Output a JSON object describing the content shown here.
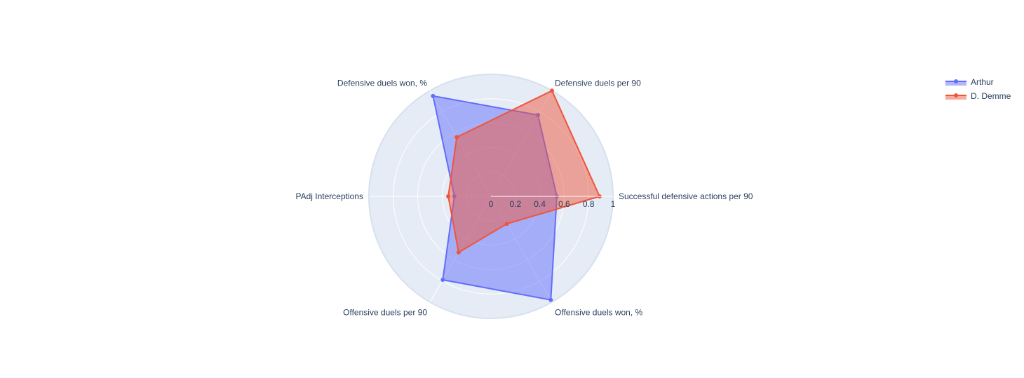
{
  "chart_data": {
    "type": "radar",
    "title": "",
    "axes": [
      "Successful defensive actions per 90",
      "Defensive duels per 90",
      "Defensive duels won, %",
      "PAdj Interceptions",
      "Offensive duels per 90",
      "Offensive duels won, %"
    ],
    "radial_range": [
      0,
      1
    ],
    "radial_ticks": [
      "0",
      "0.2",
      "0.4",
      "0.6",
      "0.8",
      "1"
    ],
    "radial_tick_values": [
      0,
      0.2,
      0.4,
      0.6,
      0.8,
      1
    ],
    "legend_position": "top-right",
    "series": [
      {
        "name": "Arthur",
        "color": "#636efa",
        "values": [
          0.54,
          0.77,
          0.95,
          0.3,
          0.79,
          0.98
        ]
      },
      {
        "name": "D. Demme",
        "color": "#ef553b",
        "values": [
          0.89,
          1.0,
          0.56,
          0.35,
          0.53,
          0.26
        ]
      }
    ]
  }
}
